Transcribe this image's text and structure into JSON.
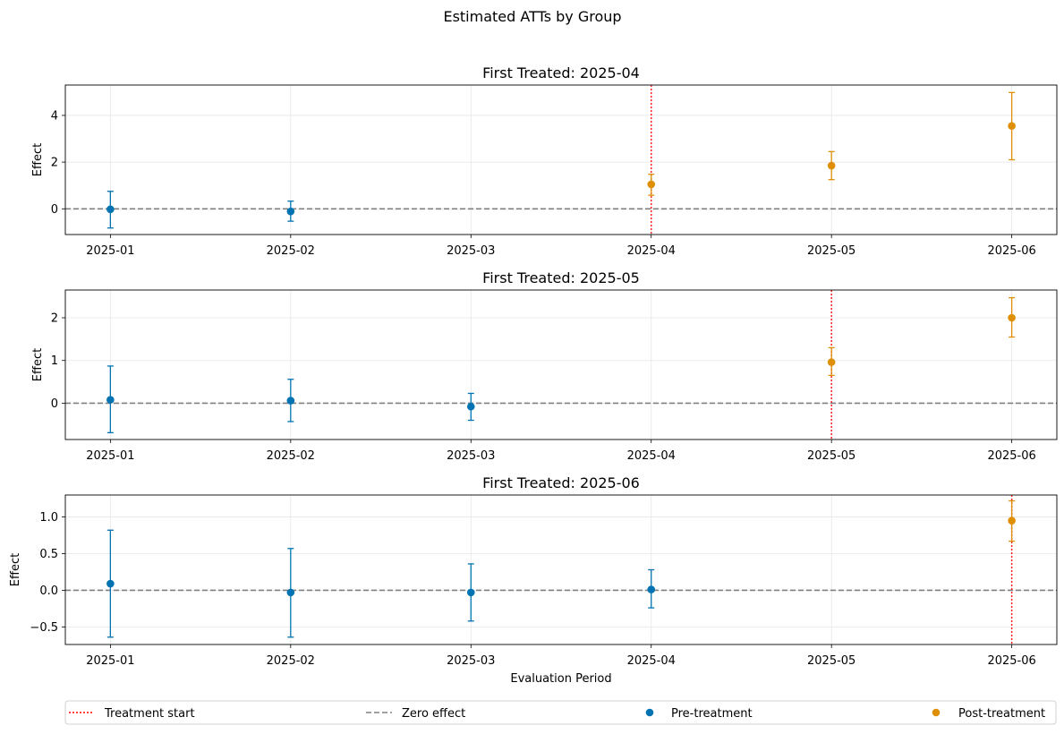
{
  "chart_data": {
    "type": "scatter",
    "title": "Estimated ATTs by Group",
    "xlabel": "Evaluation Period",
    "ylabel": "Effect",
    "periods": [
      "2025-01",
      "2025-02",
      "2025-03",
      "2025-04",
      "2025-05",
      "2025-06"
    ],
    "colors": {
      "pre": "#0173b2",
      "post": "#de8f05",
      "treatment_line": "#ff0000",
      "zero_line": "#808080"
    },
    "legend": {
      "treatment": "Treatment start",
      "zero": "Zero effect",
      "pre": "Pre-treatment",
      "post": "Post-treatment"
    },
    "panels": [
      {
        "title": "First Treated: 2025-04",
        "treatment_period": "2025-04",
        "ylim": [
          -1.1,
          5.3
        ],
        "yticks": [
          0,
          2,
          4
        ],
        "ytick_labels": [
          "0",
          "2",
          "4"
        ],
        "points": [
          {
            "period": "2025-01",
            "value": -0.02,
            "lower": -0.82,
            "upper": 0.75,
            "phase": "pre"
          },
          {
            "period": "2025-02",
            "value": -0.11,
            "lower": -0.53,
            "upper": 0.33,
            "phase": "pre"
          },
          {
            "period": "2025-04",
            "value": 1.05,
            "lower": 0.58,
            "upper": 1.48,
            "phase": "post"
          },
          {
            "period": "2025-05",
            "value": 1.85,
            "lower": 1.25,
            "upper": 2.45,
            "phase": "post"
          },
          {
            "period": "2025-06",
            "value": 3.55,
            "lower": 2.1,
            "upper": 4.98,
            "phase": "post"
          }
        ]
      },
      {
        "title": "First Treated: 2025-05",
        "treatment_period": "2025-05",
        "ylim": [
          -0.85,
          2.65
        ],
        "yticks": [
          0,
          1,
          2
        ],
        "ytick_labels": [
          "0",
          "1",
          "2"
        ],
        "points": [
          {
            "period": "2025-01",
            "value": 0.08,
            "lower": -0.69,
            "upper": 0.87,
            "phase": "pre"
          },
          {
            "period": "2025-02",
            "value": 0.06,
            "lower": -0.43,
            "upper": 0.56,
            "phase": "pre"
          },
          {
            "period": "2025-03",
            "value": -0.08,
            "lower": -0.4,
            "upper": 0.23,
            "phase": "pre"
          },
          {
            "period": "2025-05",
            "value": 0.96,
            "lower": 0.65,
            "upper": 1.3,
            "phase": "post"
          },
          {
            "period": "2025-06",
            "value": 2.0,
            "lower": 1.55,
            "upper": 2.47,
            "phase": "post"
          }
        ]
      },
      {
        "title": "First Treated: 2025-06",
        "treatment_period": "2025-06",
        "ylim": [
          -0.74,
          1.3
        ],
        "yticks": [
          -0.5,
          0,
          0.5,
          1.0
        ],
        "ytick_labels": [
          "−0.5",
          "0.0",
          "0.5",
          "1.0"
        ],
        "points": [
          {
            "period": "2025-01",
            "value": 0.09,
            "lower": -0.64,
            "upper": 0.82,
            "phase": "pre"
          },
          {
            "period": "2025-02",
            "value": -0.03,
            "lower": -0.64,
            "upper": 0.57,
            "phase": "pre"
          },
          {
            "period": "2025-03",
            "value": -0.03,
            "lower": -0.42,
            "upper": 0.36,
            "phase": "pre"
          },
          {
            "period": "2025-04",
            "value": 0.01,
            "lower": -0.24,
            "upper": 0.28,
            "phase": "pre"
          },
          {
            "period": "2025-06",
            "value": 0.95,
            "lower": 0.67,
            "upper": 1.22,
            "phase": "post"
          }
        ]
      }
    ]
  }
}
